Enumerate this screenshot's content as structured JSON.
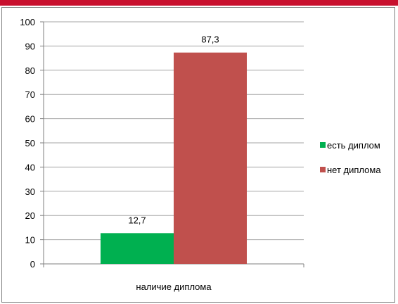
{
  "chart_data": {
    "type": "bar",
    "categories": [
      "наличие диплома"
    ],
    "series": [
      {
        "name": "есть диплом",
        "values": [
          12.7
        ],
        "label": "12,7",
        "color": "#00b050"
      },
      {
        "name": "нет диплома",
        "values": [
          87.3
        ],
        "label": "87,3",
        "color": "#c0504d"
      }
    ],
    "ylim": [
      0,
      100
    ],
    "yticks": [
      0,
      10,
      20,
      30,
      40,
      50,
      60,
      70,
      80,
      90,
      100
    ],
    "grid": true,
    "legend": "right",
    "title": "",
    "xlabel": "",
    "ylabel": ""
  },
  "colors": {
    "accent_band": "#c8102e",
    "gridline": "#a6a6a6",
    "axis": "#7f7f7f"
  }
}
